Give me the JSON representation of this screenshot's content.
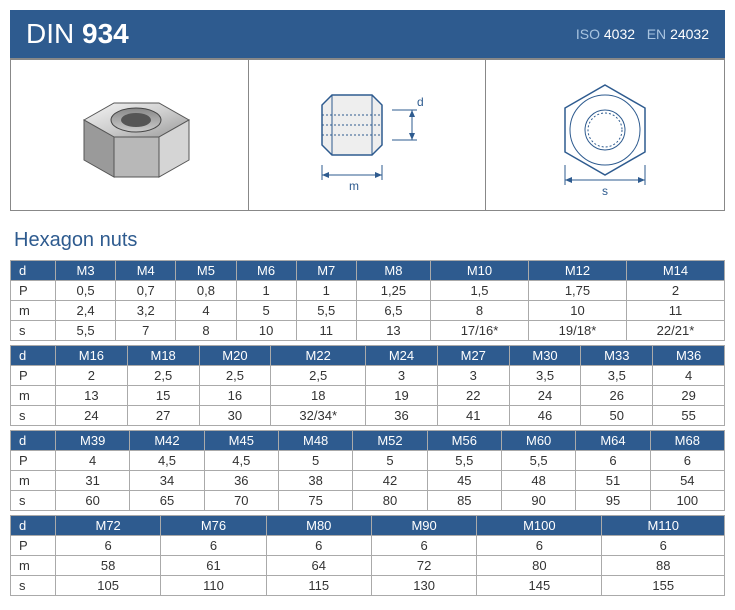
{
  "header": {
    "din_prefix": "DIN",
    "din_number": "934",
    "iso_label": "ISO",
    "iso_number": "4032",
    "en_label": "EN",
    "en_number": "24032"
  },
  "diagrams": {
    "side_label_m": "m",
    "side_label_d": "d",
    "top_label_s": "s"
  },
  "section_title": "Hexagon nuts",
  "row_labels": [
    "d",
    "P",
    "m",
    "s"
  ],
  "tables": [
    {
      "header": [
        "M3",
        "M4",
        "M5",
        "M6",
        "M7",
        "M8",
        "M10",
        "M12",
        "M14"
      ],
      "rows": [
        [
          "0,5",
          "0,7",
          "0,8",
          "1",
          "1",
          "1,25",
          "1,5",
          "1,75",
          "2"
        ],
        [
          "2,4",
          "3,2",
          "4",
          "5",
          "5,5",
          "6,5",
          "8",
          "10",
          "11"
        ],
        [
          "5,5",
          "7",
          "8",
          "10",
          "11",
          "13",
          "17/16*",
          "19/18*",
          "22/21*"
        ]
      ]
    },
    {
      "header": [
        "M16",
        "M18",
        "M20",
        "M22",
        "M24",
        "M27",
        "M30",
        "M33",
        "M36"
      ],
      "rows": [
        [
          "2",
          "2,5",
          "2,5",
          "2,5",
          "3",
          "3",
          "3,5",
          "3,5",
          "4"
        ],
        [
          "13",
          "15",
          "16",
          "18",
          "19",
          "22",
          "24",
          "26",
          "29"
        ],
        [
          "24",
          "27",
          "30",
          "32/34*",
          "36",
          "41",
          "46",
          "50",
          "55"
        ]
      ]
    },
    {
      "header": [
        "M39",
        "M42",
        "M45",
        "M48",
        "M52",
        "M56",
        "M60",
        "M64",
        "M68"
      ],
      "rows": [
        [
          "4",
          "4,5",
          "4,5",
          "5",
          "5",
          "5,5",
          "5,5",
          "6",
          "6"
        ],
        [
          "31",
          "34",
          "36",
          "38",
          "42",
          "45",
          "48",
          "51",
          "54"
        ],
        [
          "60",
          "65",
          "70",
          "75",
          "80",
          "85",
          "90",
          "95",
          "100"
        ]
      ]
    },
    {
      "header": [
        "M72",
        "M76",
        "M80",
        "M90",
        "M100",
        "M110"
      ],
      "rows": [
        [
          "6",
          "6",
          "6",
          "6",
          "6",
          "6"
        ],
        [
          "58",
          "61",
          "64",
          "72",
          "80",
          "88"
        ],
        [
          "105",
          "110",
          "115",
          "130",
          "145",
          "155"
        ]
      ]
    }
  ],
  "colors": {
    "brand": "#2e5b8f",
    "border": "#aaaaaa",
    "text": "#333333"
  }
}
